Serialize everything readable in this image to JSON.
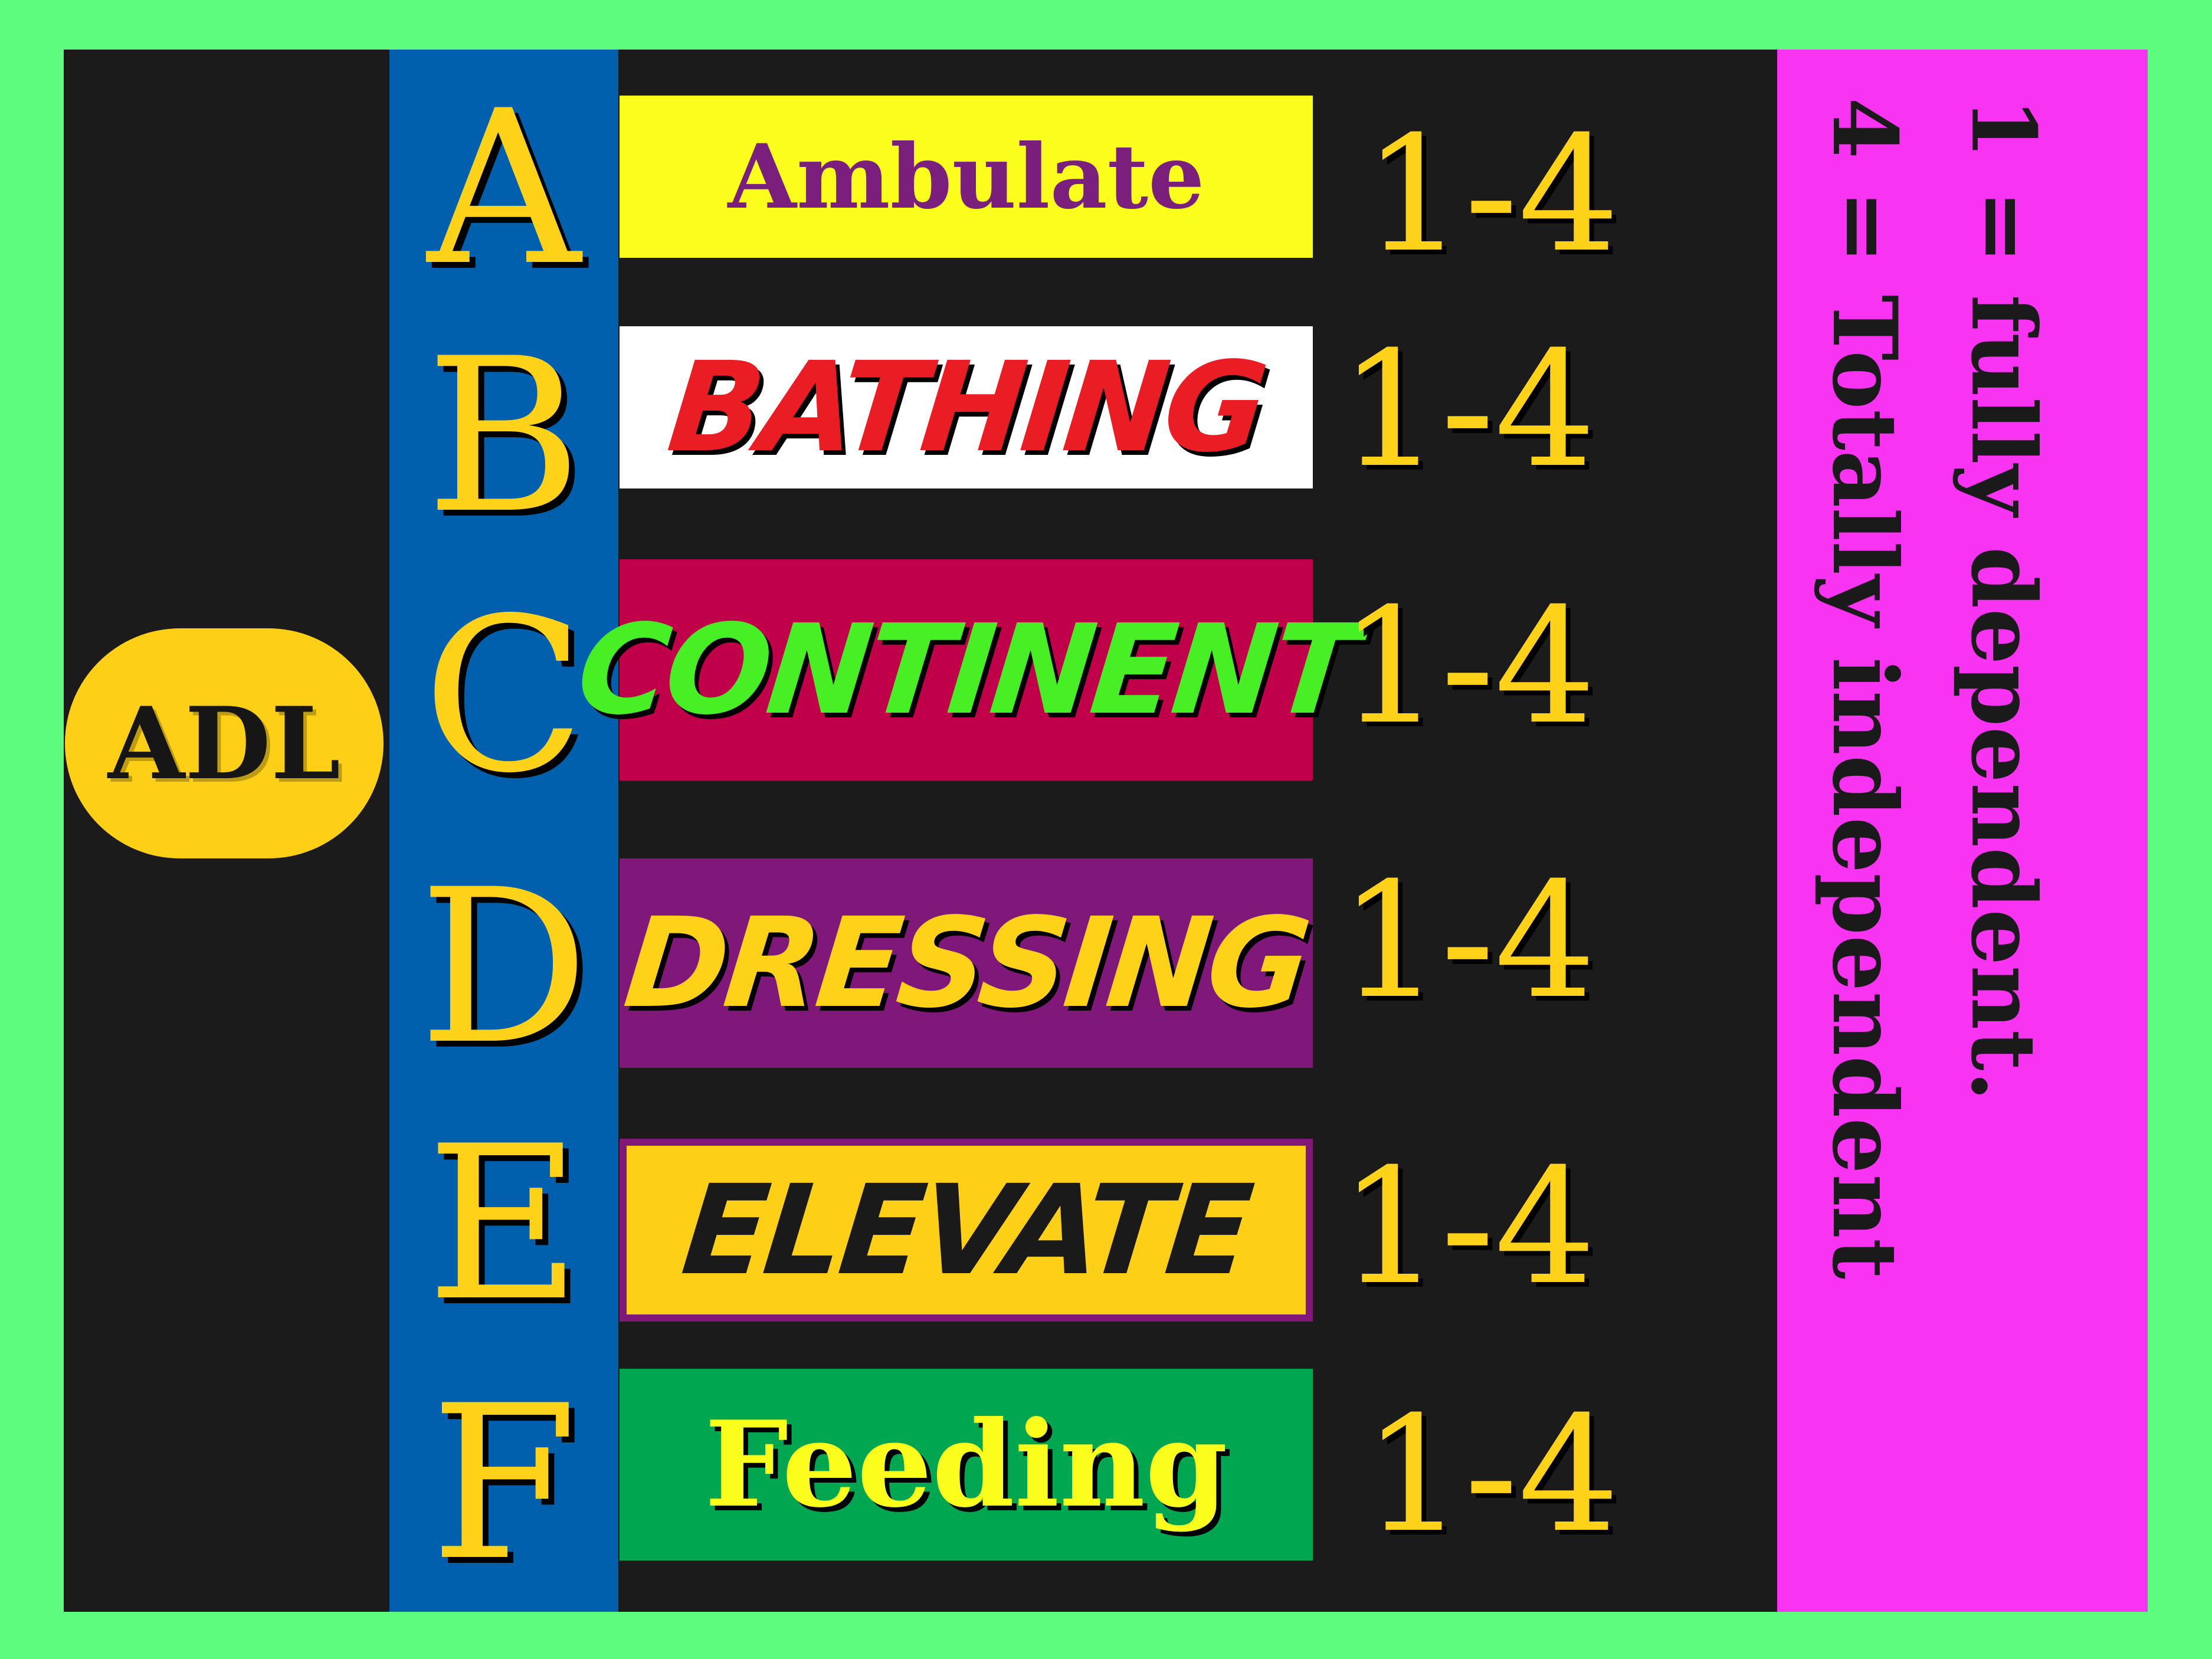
{
  "badge": {
    "label": "ADL"
  },
  "rows": [
    {
      "letter": "A",
      "label": "Ambulate",
      "score": "1-4"
    },
    {
      "letter": "B",
      "label": "BATHING",
      "score": "1-4"
    },
    {
      "letter": "C",
      "label": "CONTINENT",
      "score": "1-4"
    },
    {
      "letter": "D",
      "label": "DRESSING",
      "score": "1-4"
    },
    {
      "letter": "E",
      "label": "ELEVATE",
      "score": "1-4"
    },
    {
      "letter": "F",
      "label": "Feeding",
      "score": "1-4"
    }
  ],
  "legend": {
    "line1": "1 = fully dependent.",
    "line2": "4 = Totally independent"
  },
  "colors": {
    "page_border": "#5dfc7f",
    "board": "#1b1b1b",
    "letter_column": "#0060ad",
    "legend_column": "#f833f1",
    "gold_text": "#ffd21a",
    "ambulate_box": "#fbfd1d",
    "bathing_box": "#ffffff",
    "continent_box": "#c1004a",
    "dressing_box": "#80187a",
    "elevate_box": "#fdd017",
    "feeding_box": "#00a650"
  }
}
